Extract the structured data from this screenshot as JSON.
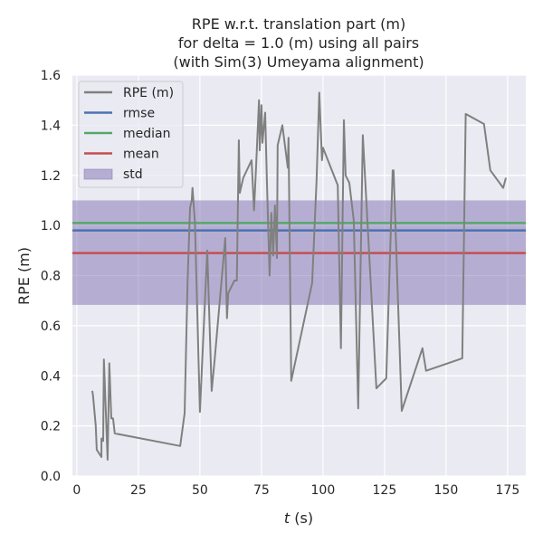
{
  "chart_data": {
    "type": "line",
    "title": [
      "RPE w.r.t. translation part (m)",
      "for delta = 1.0 (m) using all pairs",
      "(with Sim(3) Umeyama alignment)"
    ],
    "xlabel": "t (s)",
    "xlabel_var": "t",
    "xlabel_unit": " (s)",
    "ylabel": "RPE (m)",
    "xlim": [
      -1.8,
      182.4
    ],
    "ylim": [
      0,
      1.6
    ],
    "xticks": [
      0,
      25,
      50,
      75,
      100,
      125,
      150,
      175
    ],
    "yticks": [
      "0.0",
      "0.2",
      "0.4",
      "0.6",
      "0.8",
      "1.0",
      "1.2",
      "1.4",
      "1.6"
    ],
    "grid": true,
    "legend_position": "top-left",
    "legend": [
      "RPE (m)",
      "rmse",
      "median",
      "mean",
      "std"
    ],
    "colors": {
      "rpe": "#808080",
      "rmse": "#4C72B0",
      "median": "#55A868",
      "mean": "#C44E52",
      "std": "#8172B2",
      "bg": "#EAEAF2"
    },
    "stats": {
      "rmse": 0.98,
      "median": 1.01,
      "mean": 0.89,
      "std_low": 0.683,
      "std_high": 1.1
    },
    "series": [
      {
        "name": "RPE (m)",
        "x": [
          6.3,
          6.6,
          7.7,
          8.1,
          10,
          10,
          10.7,
          11,
          12.5,
          13.2,
          14,
          14.7,
          15.4,
          42,
          43.8,
          45,
          46,
          46.7,
          47,
          48,
          50,
          53,
          54.8,
          56,
          60.3,
          61,
          61.5,
          64,
          65,
          65.8,
          66.2,
          67.6,
          71,
          72,
          72.8,
          74,
          74.3,
          75,
          75.4,
          76.5,
          77.2,
          78.3,
          79,
          79.8,
          80.5,
          81.3,
          81.6,
          83.5,
          85.7,
          86,
          87.1,
          95.6,
          97.4,
          98.5,
          99.6,
          100,
          106,
          107.3,
          108.5,
          109.2,
          110.7,
          112.5,
          114.3,
          116.2,
          121.7,
          125.7,
          128.3,
          128.7,
          132,
          140.4,
          141.9,
          156.6,
          158,
          165.4,
          168,
          173.2,
          174.3
        ],
        "y": [
          0.34,
          0.32,
          0.2,
          0.105,
          0.076,
          0.15,
          0.14,
          0.465,
          0.065,
          0.45,
          0.23,
          0.23,
          0.17,
          0.12,
          0.25,
          0.78,
          1.07,
          1.1,
          1.15,
          1.01,
          0.256,
          0.9,
          0.34,
          0.465,
          0.95,
          0.63,
          0.73,
          0.78,
          0.78,
          1.34,
          1.13,
          1.19,
          1.26,
          1.06,
          1.23,
          1.5,
          1.3,
          1.48,
          1.33,
          1.45,
          1.18,
          0.8,
          1.05,
          0.88,
          1.08,
          0.87,
          1.32,
          1.4,
          1.23,
          1.35,
          0.38,
          0.77,
          1.18,
          1.53,
          1.26,
          1.31,
          1.16,
          0.51,
          1.42,
          1.2,
          1.17,
          1.02,
          0.27,
          1.36,
          0.35,
          0.39,
          1.22,
          1.22,
          0.26,
          0.51,
          0.42,
          0.47,
          1.445,
          1.405,
          1.22,
          1.15,
          1.19
        ]
      }
    ]
  }
}
